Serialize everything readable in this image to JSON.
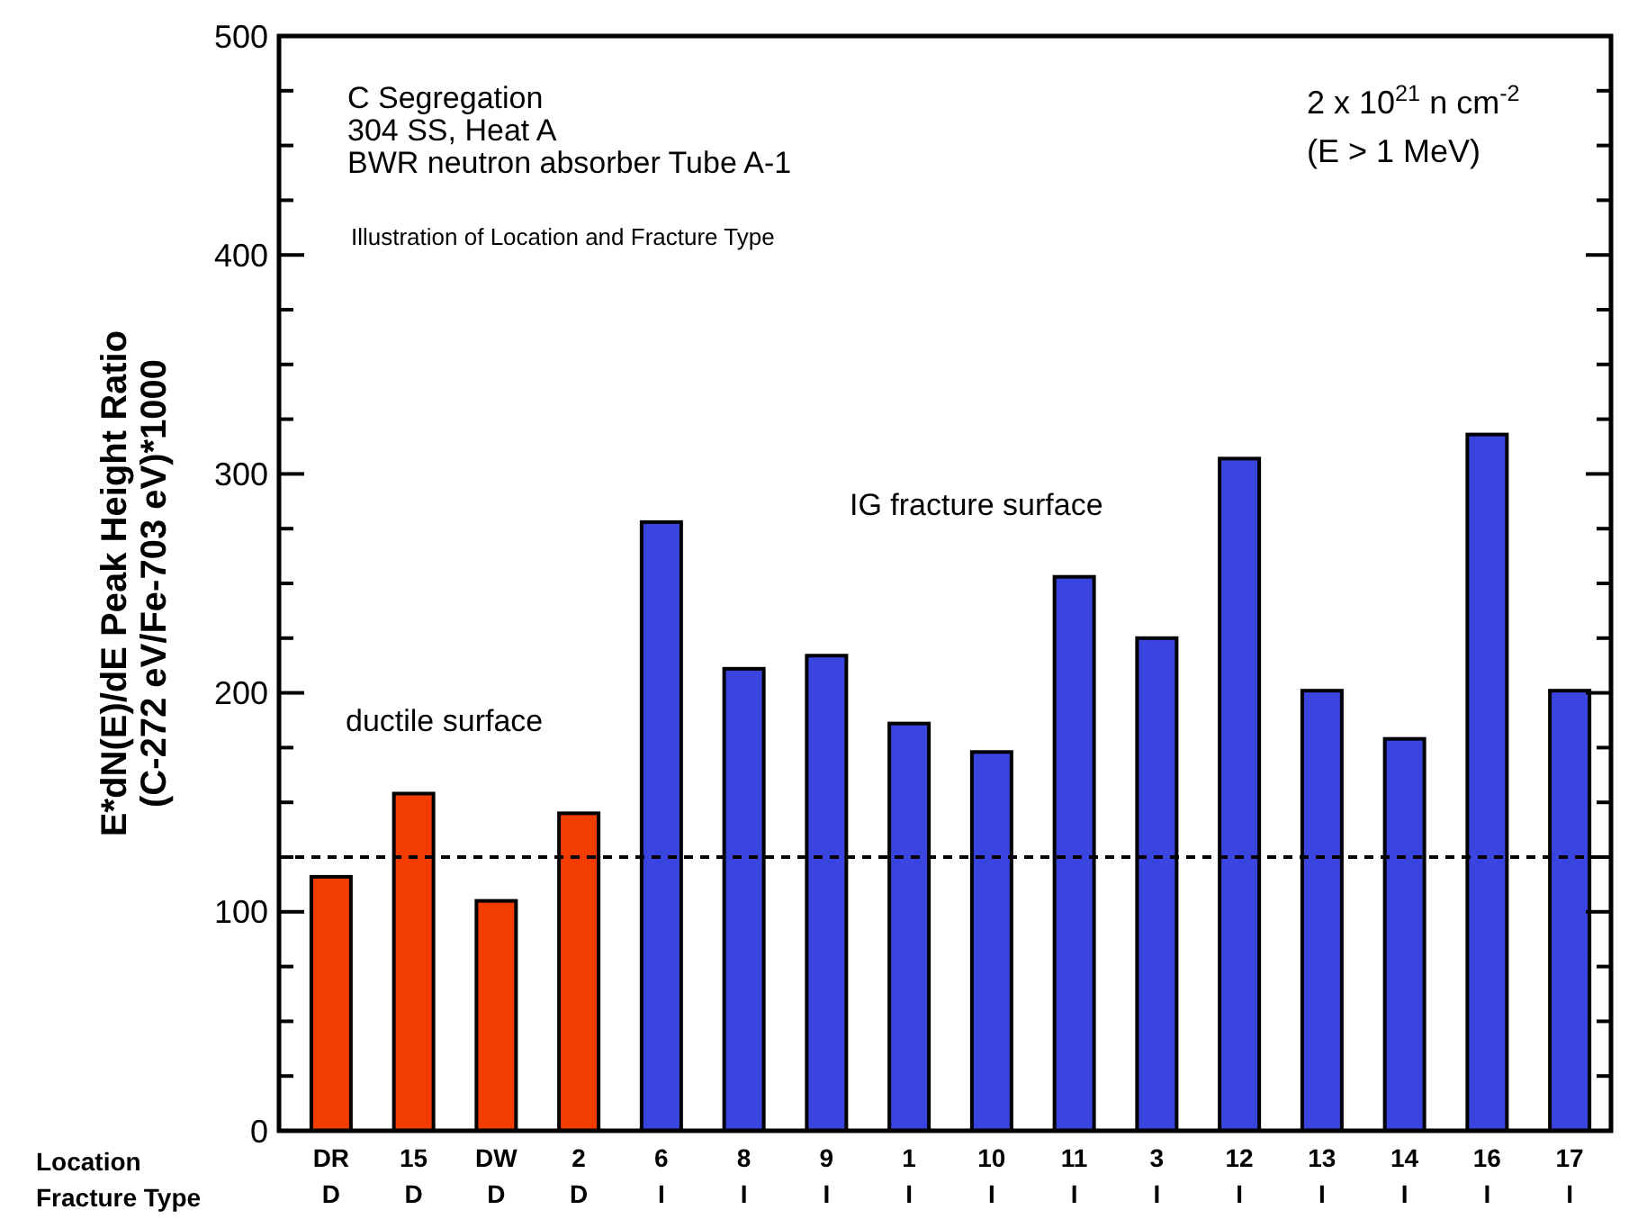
{
  "chart_data": {
    "type": "bar",
    "ylabel": "E*dN(E)/dE Peak Height Ratio\n(C-272 eV/Fe-703 eV)*1000",
    "categories": [
      "DR\nD",
      "15\nD",
      "DW\nD",
      "2\nD",
      "6\nI",
      "8\nI",
      "9\nI",
      "1\nI",
      "10\nI",
      "11\nI",
      "3\nI",
      "12\nI",
      "13\nI",
      "14\nI",
      "16\nI",
      "17\nI"
    ],
    "values": [
      116,
      154,
      105,
      145,
      278,
      211,
      217,
      186,
      173,
      253,
      225,
      307,
      201,
      179,
      318,
      201
    ],
    "colors": [
      "#f23c00",
      "#f23c00",
      "#f23c00",
      "#f23c00",
      "#3a45e0",
      "#3a45e0",
      "#3a45e0",
      "#3a45e0",
      "#3a45e0",
      "#3a45e0",
      "#3a45e0",
      "#3a45e0",
      "#3a45e0",
      "#3a45e0",
      "#3a45e0",
      "#3a45e0"
    ],
    "ylim": [
      0,
      500
    ],
    "yticks": [
      0,
      {
        "value": 25,
        "label": null
      },
      {
        "value": 50,
        "label": null
      },
      {
        "value": 75,
        "label": null
      },
      100,
      {
        "value": 125,
        "label": null
      },
      {
        "value": 150,
        "label": null
      },
      {
        "value": 175,
        "label": null
      },
      200,
      {
        "value": 225,
        "label": null
      },
      {
        "value": 250,
        "label": null
      },
      {
        "value": 275,
        "label": null
      },
      300,
      {
        "value": 325,
        "label": null
      },
      {
        "value": 350,
        "label": null
      },
      {
        "value": 375,
        "label": null
      },
      400,
      {
        "value": 425,
        "label": null
      },
      {
        "value": 450,
        "label": null
      },
      {
        "value": 475,
        "label": null
      },
      500
    ],
    "ref_lines": [
      {
        "axis": "y",
        "value": 125,
        "color": "#000000",
        "line_style": "dashed"
      }
    ],
    "annotations": [
      "C Segregation",
      "304 SS, Heat A",
      "BWR neutron absorber Tube A-1",
      "Illustration of Location and Fracture Type",
      "2 x 10$^{21}$ n cm$^{-2}$",
      "(E > 1 MeV)",
      "ductile surface",
      "IG fracture surface",
      "Location",
      "Fracture Type"
    ],
    "grid": false
  }
}
